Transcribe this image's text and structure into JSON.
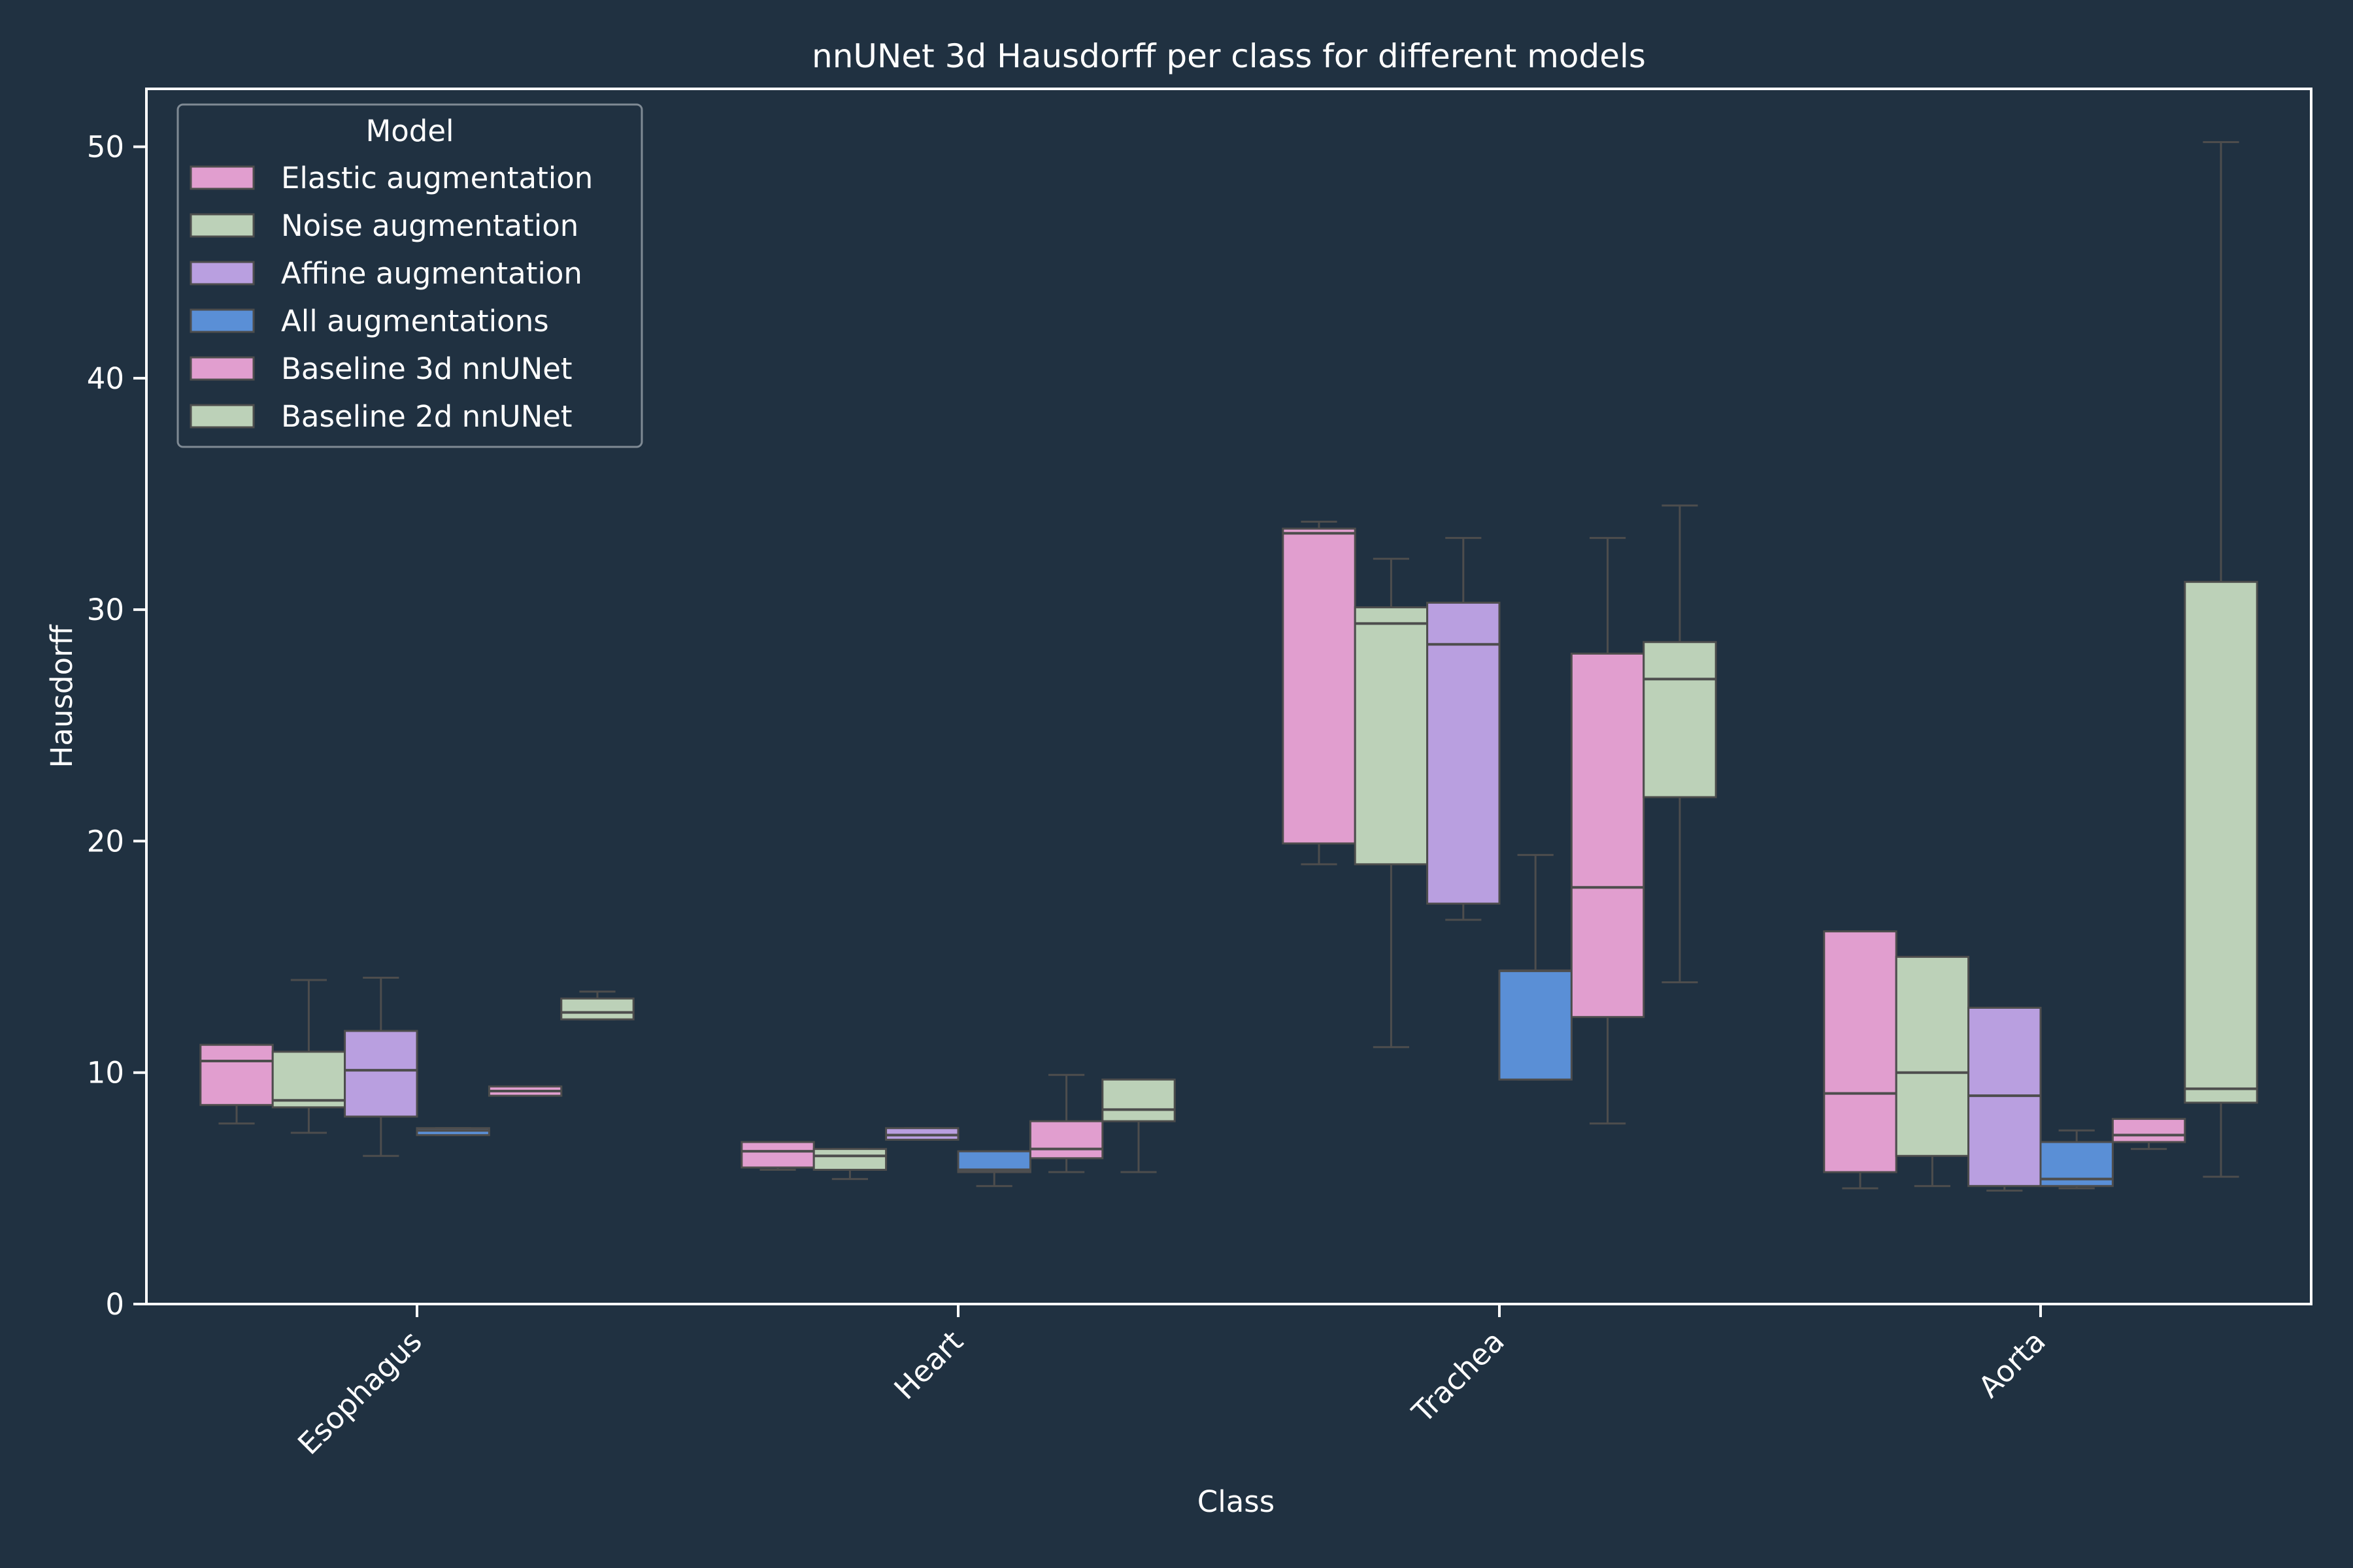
{
  "chart_data": {
    "type": "box",
    "title": "nnUNet 3d Hausdorff per class for different models",
    "xlabel": "Class",
    "ylabel": "Hausdorff",
    "ylim": [
      0,
      52.5
    ],
    "yticks": [
      0,
      10,
      20,
      30,
      40,
      50
    ],
    "categories": [
      "Esophagus",
      "Heart",
      "Trachea",
      "Aorta"
    ],
    "legend": {
      "title": "Model",
      "position": "top-left"
    },
    "grid": false,
    "series": [
      {
        "name": "Elastic augmentation",
        "color": "#e19ecf",
        "boxes": [
          {
            "whislo": 7.8,
            "q1": 8.6,
            "med": 10.5,
            "q3": 11.2,
            "whishi": 11.2
          },
          {
            "whislo": 5.8,
            "q1": 5.9,
            "med": 6.6,
            "q3": 7.0,
            "whishi": 7.0
          },
          {
            "whislo": 19.0,
            "q1": 19.9,
            "med": 33.3,
            "q3": 33.5,
            "whishi": 33.8
          },
          {
            "whislo": 5.0,
            "q1": 5.7,
            "med": 9.1,
            "q3": 16.1,
            "whishi": 16.1
          }
        ]
      },
      {
        "name": "Noise augmentation",
        "color": "#bcd1b8",
        "boxes": [
          {
            "whislo": 7.4,
            "q1": 8.5,
            "med": 8.8,
            "q3": 10.9,
            "whishi": 14.0
          },
          {
            "whislo": 5.4,
            "q1": 5.8,
            "med": 6.4,
            "q3": 6.7,
            "whishi": 6.7
          },
          {
            "whislo": 11.1,
            "q1": 19.0,
            "med": 29.4,
            "q3": 30.1,
            "whishi": 32.2
          },
          {
            "whislo": 5.1,
            "q1": 6.4,
            "med": 10.0,
            "q3": 15.0,
            "whishi": 15.0
          }
        ]
      },
      {
        "name": "Affine augmentation",
        "color": "#b99fe0",
        "boxes": [
          {
            "whislo": 6.4,
            "q1": 8.1,
            "med": 10.1,
            "q3": 11.8,
            "whishi": 14.1
          },
          {
            "whislo": 7.1,
            "q1": 7.1,
            "med": 7.3,
            "q3": 7.6,
            "whishi": 7.6
          },
          {
            "whislo": 16.6,
            "q1": 17.3,
            "med": 28.5,
            "q3": 30.3,
            "whishi": 33.1
          },
          {
            "whislo": 4.9,
            "q1": 5.1,
            "med": 9.0,
            "q3": 12.8,
            "whishi": 12.8
          }
        ]
      },
      {
        "name": "All augmentations",
        "color": "#5a8fd6",
        "boxes": [
          {
            "whislo": 7.3,
            "q1": 7.3,
            "med": 7.5,
            "q3": 7.6,
            "whishi": 7.6
          },
          {
            "whislo": 5.1,
            "q1": 5.7,
            "med": 5.8,
            "q3": 6.6,
            "whishi": 6.6
          },
          {
            "whislo": 9.7,
            "q1": 9.7,
            "med": 14.4,
            "q3": 14.4,
            "whishi": 19.4
          },
          {
            "whislo": 5.0,
            "q1": 5.1,
            "med": 5.4,
            "q3": 7.0,
            "whishi": 7.5
          }
        ]
      },
      {
        "name": "Baseline 3d nnUNet",
        "color": "#e19ecf",
        "boxes": [
          {
            "whislo": 9.0,
            "q1": 9.0,
            "med": 9.2,
            "q3": 9.4,
            "whishi": 9.4
          },
          {
            "whislo": 5.7,
            "q1": 6.3,
            "med": 6.7,
            "q3": 7.9,
            "whishi": 9.9
          },
          {
            "whislo": 7.8,
            "q1": 12.4,
            "med": 18.0,
            "q3": 28.1,
            "whishi": 33.1
          },
          {
            "whislo": 6.7,
            "q1": 7.0,
            "med": 7.3,
            "q3": 8.0,
            "whishi": 8.0
          }
        ]
      },
      {
        "name": "Baseline 2d nnUNet",
        "color": "#bcd1b8",
        "boxes": [
          {
            "whislo": 12.3,
            "q1": 12.3,
            "med": 12.6,
            "q3": 13.2,
            "whishi": 13.5
          },
          {
            "whislo": 5.7,
            "q1": 7.9,
            "med": 8.4,
            "q3": 9.7,
            "whishi": 9.7
          },
          {
            "whislo": 13.9,
            "q1": 21.9,
            "med": 27.0,
            "q3": 28.6,
            "whishi": 34.5
          },
          {
            "whislo": 5.5,
            "q1": 8.7,
            "med": 9.3,
            "q3": 31.2,
            "whishi": 50.2
          }
        ]
      }
    ]
  }
}
